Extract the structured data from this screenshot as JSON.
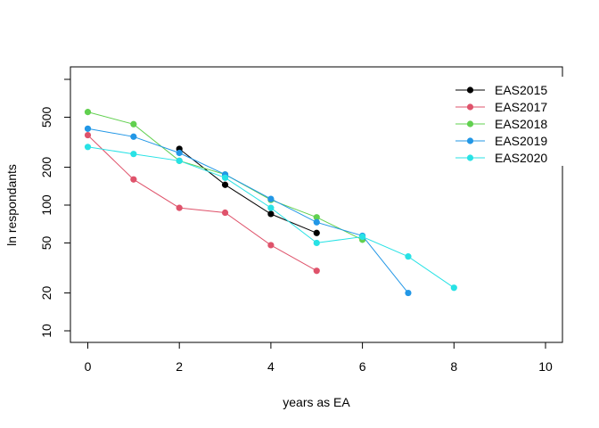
{
  "chart_data": {
    "type": "line",
    "title": "",
    "xlabel": "years as EA",
    "ylabel": "ln respondants",
    "xlim": [
      0,
      10
    ],
    "ylim": [
      10,
      1000
    ],
    "y_scale": "log",
    "xticks": [
      0,
      2,
      4,
      6,
      8,
      10
    ],
    "yticks": [
      10,
      20,
      50,
      100,
      200,
      500
    ],
    "y_extra_tick": 1000,
    "legend_position": "top-right",
    "grid": false,
    "series": [
      {
        "name": "EAS2015",
        "color": "#000000",
        "x": [
          2,
          3,
          4,
          5
        ],
        "y": [
          280,
          145,
          85,
          60
        ]
      },
      {
        "name": "EAS2017",
        "color": "#DF536B",
        "x": [
          0,
          1,
          2,
          3,
          4,
          5
        ],
        "y": [
          360,
          160,
          95,
          87,
          48,
          30
        ]
      },
      {
        "name": "EAS2018",
        "color": "#61D04F",
        "x": [
          0,
          1,
          2,
          3,
          4,
          5,
          6
        ],
        "y": [
          550,
          440,
          225,
          175,
          110,
          80,
          53
        ]
      },
      {
        "name": "EAS2019",
        "color": "#2297E6",
        "x": [
          0,
          1,
          2,
          3,
          4,
          5,
          6,
          7
        ],
        "y": [
          405,
          350,
          260,
          175,
          112,
          73,
          57,
          20
        ]
      },
      {
        "name": "EAS2020",
        "color": "#28E2E5",
        "x": [
          0,
          1,
          2,
          3,
          4,
          5,
          6,
          7,
          8
        ],
        "y": [
          290,
          255,
          225,
          165,
          95,
          50,
          56,
          39,
          22
        ]
      }
    ]
  }
}
